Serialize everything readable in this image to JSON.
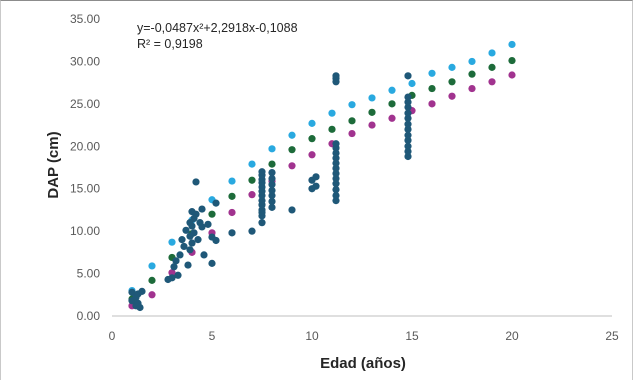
{
  "chart_data": {
    "type": "scatter",
    "xlabel": "Edad (años)",
    "ylabel": "DAP (cm)",
    "xlim": [
      0,
      25
    ],
    "ylim": [
      0,
      35
    ],
    "x_ticks": [
      "0",
      "5",
      "10",
      "15",
      "20",
      "25"
    ],
    "y_ticks": [
      "0.00",
      "5.00",
      "10.00",
      "15.00",
      "20.00",
      "25.00",
      "30.00",
      "35.00"
    ],
    "grid": false,
    "legend": "none",
    "annotation": {
      "equation": "y=-0,0487x²+2,2918x-0,1088",
      "r_squared": "R² = 0,9198"
    },
    "series": [
      {
        "color": "#29a9e0",
        "x": [
          1,
          2,
          3,
          4,
          5,
          6,
          7,
          8,
          9,
          10,
          11,
          12,
          13,
          14,
          15,
          16,
          17,
          18,
          19,
          20
        ],
        "y": [
          3.0,
          5.9,
          8.7,
          11.3,
          13.7,
          15.9,
          17.9,
          19.7,
          21.3,
          22.7,
          23.9,
          24.9,
          25.7,
          26.6,
          27.4,
          28.6,
          29.3,
          30.0,
          31.0,
          32.0
        ]
      },
      {
        "color": "#1d6b3a",
        "x": [
          1,
          2,
          3,
          4,
          5,
          6,
          7,
          8,
          9,
          10,
          11,
          12,
          13,
          14,
          15,
          16,
          17,
          18,
          19,
          20
        ],
        "y": [
          2.0,
          4.2,
          6.9,
          9.7,
          12.0,
          14.1,
          16.0,
          17.9,
          19.6,
          20.9,
          22.0,
          23.0,
          24.0,
          25.0,
          26.0,
          26.8,
          27.6,
          28.5,
          29.3,
          30.1
        ]
      },
      {
        "color": "#a1338f",
        "x": [
          1,
          2,
          3,
          4,
          5,
          6,
          7,
          8,
          9,
          10,
          11,
          12,
          13,
          14,
          15,
          16,
          17,
          18,
          19,
          20
        ],
        "y": [
          1.2,
          2.5,
          5.1,
          7.5,
          9.8,
          12.2,
          14.3,
          15.9,
          17.7,
          19.0,
          20.3,
          21.5,
          22.5,
          23.3,
          24.2,
          25.0,
          25.9,
          26.8,
          27.6,
          28.4
        ]
      },
      {
        "color": "#1f5878",
        "x": [
          1,
          1,
          1.2,
          1.2,
          1.3,
          1.3,
          1.4,
          1.5,
          2.8,
          3.0,
          3.1,
          3.2,
          3.3,
          3.4,
          3.5,
          3.6,
          3.7,
          3.8,
          3.9,
          3.9,
          3.9,
          4.0,
          4.0,
          4.0,
          4.1,
          4.1,
          4.2,
          4.2,
          4.3,
          4.4,
          4.5,
          4.5,
          4.6,
          4.8,
          5.0,
          5.0,
          5.2,
          5.2,
          6.0,
          7.0,
          7.5,
          7.5,
          7.5,
          7.5,
          7.5,
          7.5,
          7.5,
          7.5,
          7.5,
          7.5,
          7.5,
          7.5,
          7.5,
          8.0,
          8.0,
          8.0,
          8.0,
          8.0,
          8.0,
          8.0,
          9.0,
          10.0,
          10.0,
          10.2,
          10.2,
          11.2,
          11.2,
          11.2,
          11.2,
          11.2,
          11.2,
          11.2,
          11.2,
          11.2,
          11.2,
          11.2,
          11.2,
          11.2,
          11.2,
          11.2,
          14.8,
          14.8,
          14.8,
          14.8,
          14.8,
          14.8,
          14.8,
          14.8,
          14.8,
          14.8,
          14.8,
          14.8,
          14.8
        ],
        "y": [
          1.8,
          2.8,
          1.2,
          2.2,
          1.5,
          2.6,
          1.0,
          2.9,
          4.3,
          4.5,
          5.8,
          6.5,
          4.8,
          7.2,
          9.0,
          8.2,
          10.1,
          6.0,
          9.4,
          11.0,
          7.8,
          12.3,
          10.6,
          8.6,
          11.5,
          9.8,
          15.8,
          12.0,
          9.0,
          11.0,
          10.5,
          12.6,
          7.2,
          10.8,
          9.3,
          6.2,
          13.3,
          8.9,
          9.8,
          10.0,
          11.0,
          11.8,
          12.5,
          13.1,
          13.6,
          14.2,
          14.7,
          15.2,
          15.7,
          16.1,
          16.6,
          17.0,
          12.2,
          12.8,
          13.5,
          14.2,
          14.8,
          15.5,
          16.2,
          16.9,
          12.5,
          15.0,
          16.0,
          15.3,
          16.4,
          13.6,
          14.2,
          14.9,
          15.6,
          16.2,
          16.8,
          17.4,
          18.0,
          18.6,
          19.2,
          19.8,
          20.3,
          27.6,
          28.0,
          28.3,
          18.8,
          19.4,
          20.0,
          20.7,
          21.3,
          22.0,
          22.6,
          23.3,
          23.9,
          24.6,
          25.2,
          25.8,
          28.3
        ]
      }
    ]
  }
}
